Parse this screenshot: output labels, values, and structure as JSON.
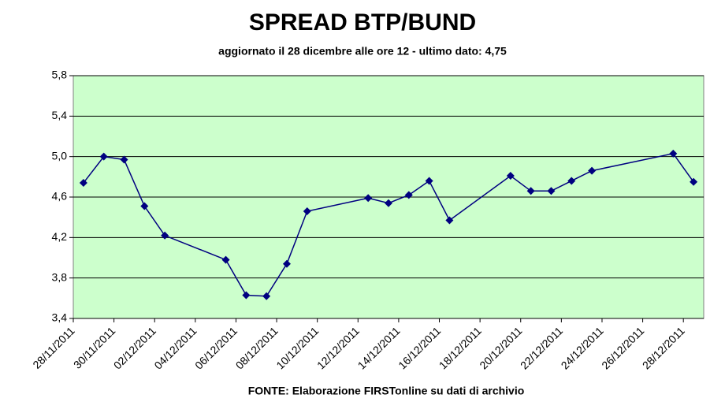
{
  "chart_data": {
    "type": "line",
    "title": "SPREAD BTP/BUND",
    "subtitle": "aggiornato il 28 dicembre alle ore 12 - ultimo dato: 4,75",
    "source": "FONTE: Elaborazione FIRSTonline su dati di archivio",
    "x": [
      "28/11/2011",
      "29/11/2011",
      "30/11/2011",
      "01/12/2011",
      "02/12/2011",
      "05/12/2011",
      "06/12/2011",
      "07/12/2011",
      "08/12/2011",
      "09/12/2011",
      "12/12/2011",
      "13/12/2011",
      "14/12/2011",
      "15/12/2011",
      "16/12/2011",
      "19/12/2011",
      "20/12/2011",
      "21/12/2011",
      "22/12/2011",
      "23/12/2011",
      "27/12/2011",
      "28/12/2011"
    ],
    "series": [
      {
        "name": "Spread",
        "color": "#000080",
        "values": [
          4.74,
          5.0,
          4.97,
          4.51,
          4.22,
          3.98,
          3.63,
          3.62,
          3.94,
          4.46,
          4.59,
          4.54,
          4.62,
          4.76,
          4.37,
          4.81,
          4.66,
          4.66,
          4.76,
          4.86,
          5.03,
          4.75
        ]
      }
    ],
    "xlim": [
      "28/11/2011",
      "28/12/2011"
    ],
    "xticks": [
      "28/11/2011",
      "30/11/2011",
      "02/12/2011",
      "04/12/2011",
      "06/12/2011",
      "08/12/2011",
      "10/12/2011",
      "12/12/2011",
      "14/12/2011",
      "16/12/2011",
      "18/12/2011",
      "20/12/2011",
      "22/12/2011",
      "24/12/2011",
      "26/12/2011",
      "28/12/2011"
    ],
    "ylim": [
      3.4,
      5.8
    ],
    "yticks": [
      {
        "value": 3.4,
        "label": "3,4"
      },
      {
        "value": 3.8,
        "label": "3,8"
      },
      {
        "value": 4.2,
        "label": "4,2"
      },
      {
        "value": 4.6,
        "label": "4,6"
      },
      {
        "value": 5.0,
        "label": "5,0"
      },
      {
        "value": 5.4,
        "label": "5,4"
      },
      {
        "value": 5.8,
        "label": "5,8"
      }
    ],
    "grid": true,
    "plot_background": "#ccffcc"
  }
}
